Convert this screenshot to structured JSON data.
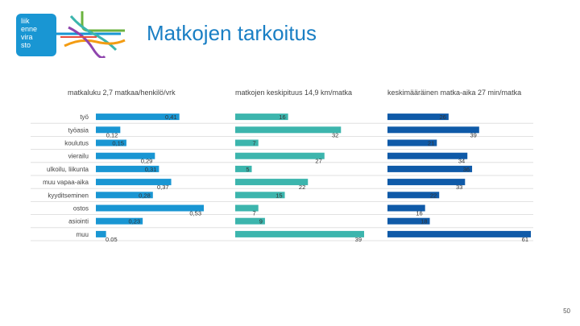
{
  "logo": {
    "lines": [
      "liik",
      "enne",
      "vira",
      "sto"
    ]
  },
  "page_title": "Matkojen tarkoitus",
  "page_number": "50",
  "colors": {
    "accent": "#1a7fc4",
    "panel1": "#1996d3",
    "panel2": "#3cb5ad",
    "panel3": "#0f5aa8"
  },
  "chart_data": {
    "type": "bar",
    "categories": [
      "työ",
      "työasia",
      "koulutus",
      "vierailu",
      "ulkoilu, liikunta",
      "muu vapaa-aika",
      "kyyditseminen",
      "ostos",
      "asiointi",
      "muu"
    ],
    "panels": [
      {
        "name": "matkaluku 2,7 matkaa/henkilö/vrk",
        "values": [
          0.41,
          0.12,
          0.15,
          0.29,
          0.31,
          0.37,
          0.28,
          0.53,
          0.23,
          0.05
        ],
        "labels": [
          "0,41",
          "0,12",
          "0,15",
          "0,29",
          "0,31",
          "0,37",
          "0,28",
          "0,53",
          "0,23",
          "0,05"
        ],
        "max": 0.53
      },
      {
        "name": "matkojen keskipituus 14,9 km/matka",
        "values": [
          16,
          32,
          7,
          27,
          5,
          22,
          15,
          7,
          9,
          39
        ],
        "labels": [
          "16",
          "32",
          "7",
          "27",
          "5",
          "22",
          "15",
          "7",
          "9",
          "39"
        ],
        "max": 39
      },
      {
        "name": "keskimääräinen matka-aika 27 min/matka",
        "values": [
          26,
          39,
          21,
          34,
          36,
          33,
          22,
          16,
          18,
          61
        ],
        "labels": [
          "26",
          "39",
          "21",
          "34",
          "36",
          "33",
          "22",
          "16",
          "18",
          "61"
        ],
        "max": 61
      }
    ]
  }
}
